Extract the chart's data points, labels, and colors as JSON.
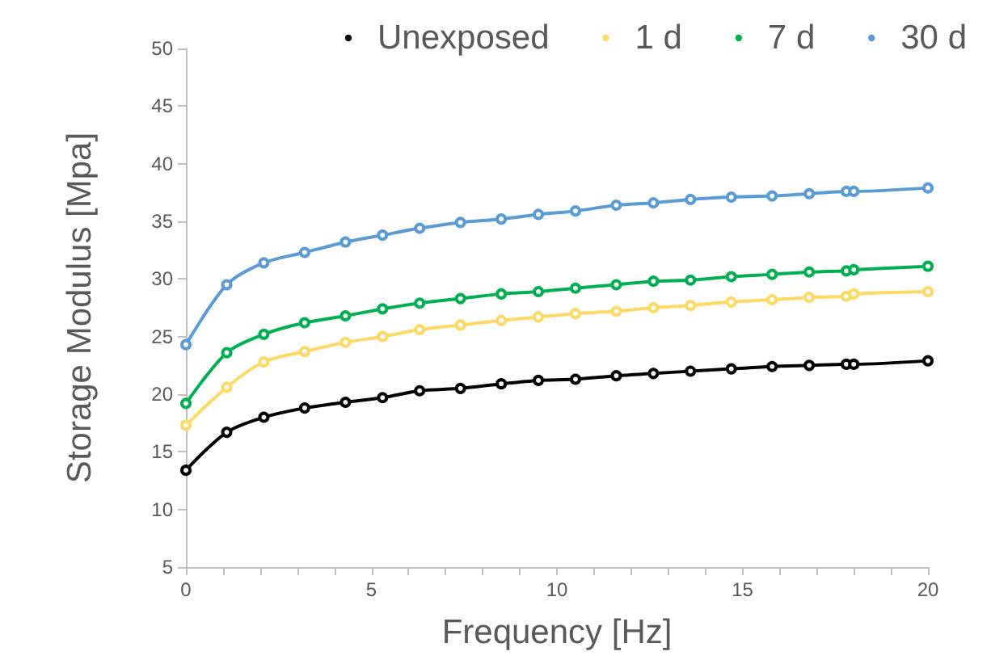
{
  "chart_data": {
    "type": "line",
    "xlabel": "Frequency [Hz]",
    "ylabel": "Storage Modulus [Mpa]",
    "x": [
      0,
      1.1,
      2.1,
      3.2,
      4.3,
      5.3,
      6.3,
      7.4,
      8.5,
      9.5,
      10.5,
      11.6,
      12.6,
      13.6,
      14.7,
      15.8,
      16.8,
      17.8,
      18,
      20
    ],
    "series": [
      {
        "name": "Unexposed",
        "color": "#000000",
        "values": [
          13.4,
          16.7,
          18.0,
          18.8,
          19.3,
          19.7,
          20.3,
          20.5,
          20.9,
          21.2,
          21.3,
          21.6,
          21.8,
          22.0,
          22.2,
          22.4,
          22.5,
          22.6,
          22.6,
          22.9
        ]
      },
      {
        "name": "1 d",
        "color": "#ffd966",
        "values": [
          17.3,
          20.6,
          22.8,
          23.7,
          24.5,
          25.0,
          25.6,
          26.0,
          26.4,
          26.7,
          27.0,
          27.2,
          27.5,
          27.7,
          28.0,
          28.2,
          28.4,
          28.5,
          28.7,
          28.9
        ]
      },
      {
        "name": "7 d",
        "color": "#00b050",
        "values": [
          19.2,
          23.6,
          25.2,
          26.2,
          26.8,
          27.4,
          27.9,
          28.3,
          28.7,
          28.9,
          29.2,
          29.5,
          29.8,
          29.9,
          30.2,
          30.4,
          30.6,
          30.7,
          30.8,
          31.1
        ]
      },
      {
        "name": "30 d",
        "color": "#5b9bd5",
        "values": [
          24.3,
          29.5,
          31.4,
          32.3,
          33.2,
          33.8,
          34.4,
          34.9,
          35.2,
          35.6,
          35.9,
          36.4,
          36.6,
          36.9,
          37.1,
          37.2,
          37.4,
          37.6,
          37.6,
          37.9
        ]
      }
    ],
    "xlim": [
      0,
      20
    ],
    "xticks": [
      0,
      {
        "value": 1,
        "label": null
      },
      {
        "value": 2,
        "label": null
      },
      {
        "value": 3,
        "label": null
      },
      {
        "value": 4,
        "label": null
      },
      5,
      {
        "value": 6,
        "label": null
      },
      {
        "value": 7,
        "label": null
      },
      {
        "value": 8,
        "label": null
      },
      {
        "value": 9,
        "label": null
      },
      10,
      {
        "value": 11,
        "label": null
      },
      {
        "value": 12,
        "label": null
      },
      {
        "value": 13,
        "label": null
      },
      {
        "value": 14,
        "label": null
      },
      15,
      {
        "value": 16,
        "label": null
      },
      {
        "value": 17,
        "label": null
      },
      {
        "value": 18,
        "label": null
      },
      {
        "value": 19,
        "label": null
      },
      20
    ],
    "ylim": [
      5,
      50
    ],
    "yticks": [
      5,
      10,
      15,
      20,
      25,
      30,
      35,
      40,
      45,
      50
    ],
    "grid": false,
    "legend": "top right",
    "marker": "circle",
    "line_style": "solid"
  }
}
